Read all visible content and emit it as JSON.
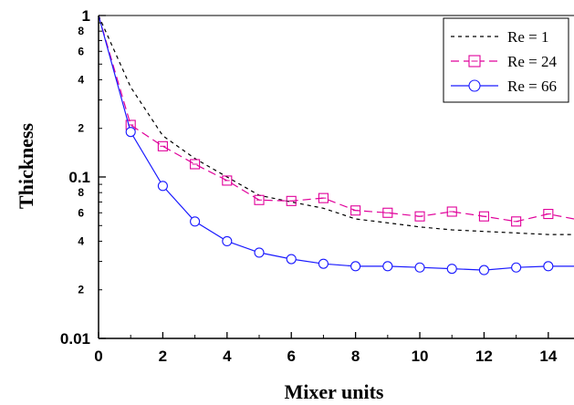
{
  "chart_data": {
    "type": "line",
    "xlabel": "Mixer units",
    "ylabel": "Thickness",
    "xlim": [
      0,
      14.8
    ],
    "ylim": [
      0.01,
      1
    ],
    "yscale": "log",
    "x_ticks": [
      "0",
      "2",
      "4",
      "6",
      "8",
      "10",
      "12",
      "14"
    ],
    "y_major_ticks": [
      "0.01",
      "0.1",
      "1"
    ],
    "y_minor_ticks": [
      "2",
      "4",
      "6",
      "8",
      "2",
      "4",
      "6",
      "8"
    ],
    "legend_position": "top-right",
    "grid": false,
    "series": [
      {
        "name": "Re = 1",
        "style": "dashed",
        "marker": "none",
        "color": "#000000",
        "x": [
          0,
          1,
          2,
          3,
          4,
          5,
          6,
          7,
          8,
          9,
          10,
          11,
          12,
          13,
          14,
          14.8
        ],
        "values": [
          1.0,
          0.36,
          0.18,
          0.13,
          0.1,
          0.077,
          0.07,
          0.064,
          0.055,
          0.052,
          0.049,
          0.047,
          0.046,
          0.045,
          0.044,
          0.044
        ]
      },
      {
        "name": "Re = 24",
        "style": "dashed",
        "marker": "square",
        "color": "#e0009a",
        "x": [
          0,
          1,
          2,
          3,
          4,
          5,
          6,
          7,
          8,
          9,
          10,
          11,
          12,
          13,
          14,
          14.8
        ],
        "values": [
          1.0,
          0.21,
          0.155,
          0.12,
          0.095,
          0.072,
          0.071,
          0.074,
          0.062,
          0.06,
          0.057,
          0.061,
          0.057,
          0.053,
          0.059,
          0.055
        ]
      },
      {
        "name": "Re = 66",
        "style": "solid",
        "marker": "circle",
        "color": "#1a1aff",
        "x": [
          0,
          1,
          2,
          3,
          4,
          5,
          6,
          7,
          8,
          9,
          10,
          11,
          12,
          13,
          14,
          14.8
        ],
        "values": [
          1.0,
          0.19,
          0.088,
          0.053,
          0.04,
          0.034,
          0.031,
          0.029,
          0.028,
          0.028,
          0.0275,
          0.027,
          0.0265,
          0.0275,
          0.028,
          0.028
        ]
      }
    ]
  }
}
